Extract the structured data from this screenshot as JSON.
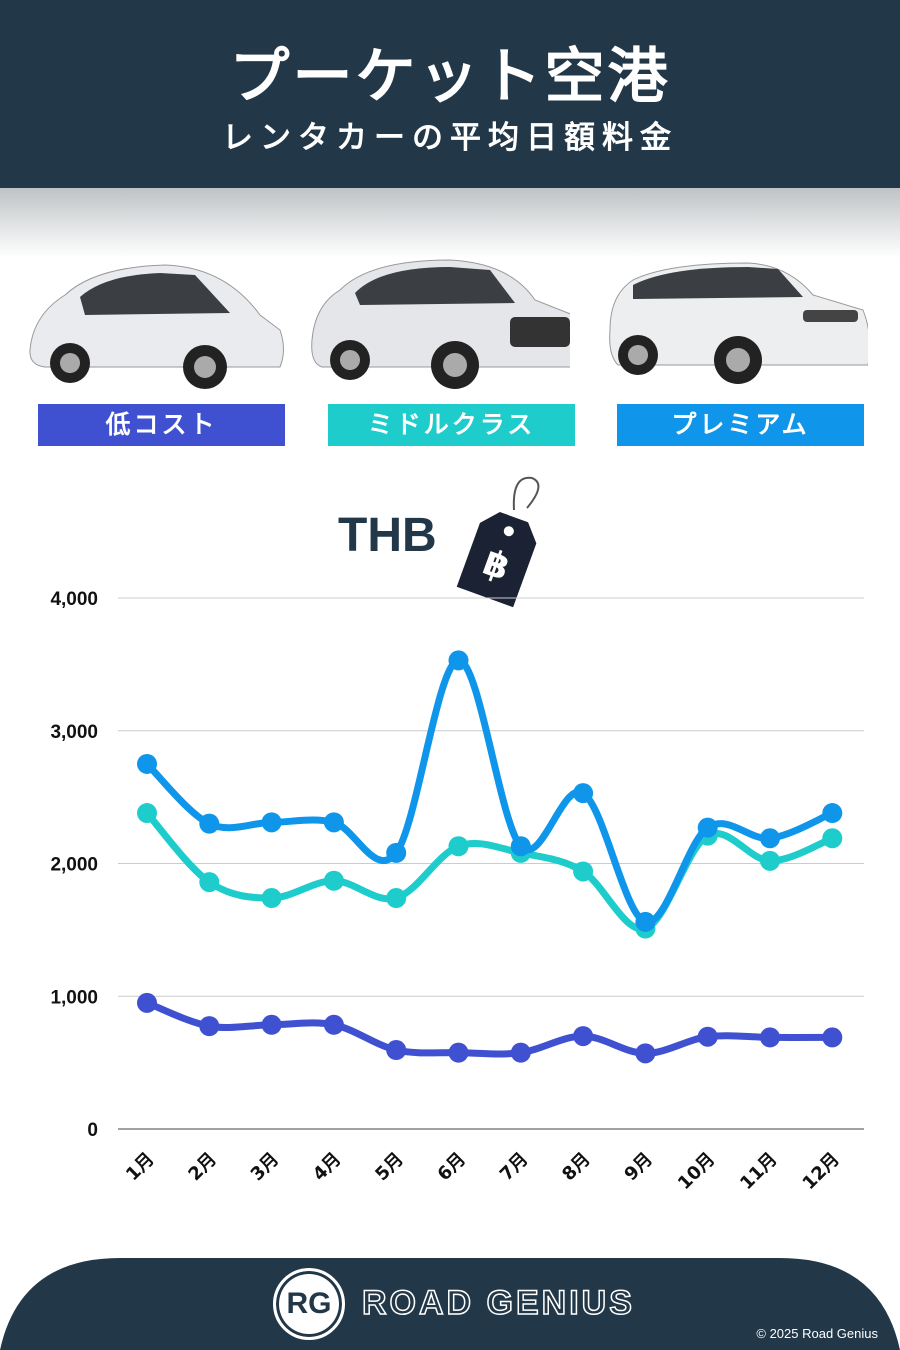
{
  "header": {
    "title": "プーケット空港",
    "subtitle": "レンタカーの平均日額料金"
  },
  "categories_labels": [
    {
      "label": "低コスト",
      "color": "#3f51d1"
    },
    {
      "label": "ミドルクラス",
      "color": "#1ecccc"
    },
    {
      "label": "プレミアム",
      "color": "#0f96ea"
    }
  ],
  "currency": {
    "label": "THB",
    "symbol": "฿"
  },
  "chart_data": {
    "type": "line",
    "categories": [
      "1月",
      "2月",
      "3月",
      "4月",
      "5月",
      "6月",
      "7月",
      "8月",
      "9月",
      "10月",
      "11月",
      "12月"
    ],
    "yticks": [
      "0",
      "1,000",
      "2,000",
      "3,000",
      "4,000"
    ],
    "ylim": [
      0,
      4000
    ],
    "grid": true,
    "series": [
      {
        "name": "低コスト",
        "color": "#3f51d1",
        "values": [
          950,
          775,
          785,
          785,
          595,
          575,
          575,
          700,
          570,
          695,
          690,
          690
        ]
      },
      {
        "name": "ミドルクラス",
        "color": "#1ecccc",
        "values": [
          2380,
          1860,
          1740,
          1870,
          1740,
          2130,
          2080,
          1940,
          1510,
          2210,
          2020,
          2190
        ]
      },
      {
        "name": "プレミアム",
        "color": "#0f96ea",
        "values": [
          2750,
          2300,
          2310,
          2310,
          2080,
          3530,
          2130,
          2530,
          1560,
          2270,
          2190,
          2380
        ]
      }
    ]
  },
  "footer": {
    "brand": "ROAD GENIUS",
    "logo": "RG",
    "copyright": "© 2025 Road Genius"
  }
}
